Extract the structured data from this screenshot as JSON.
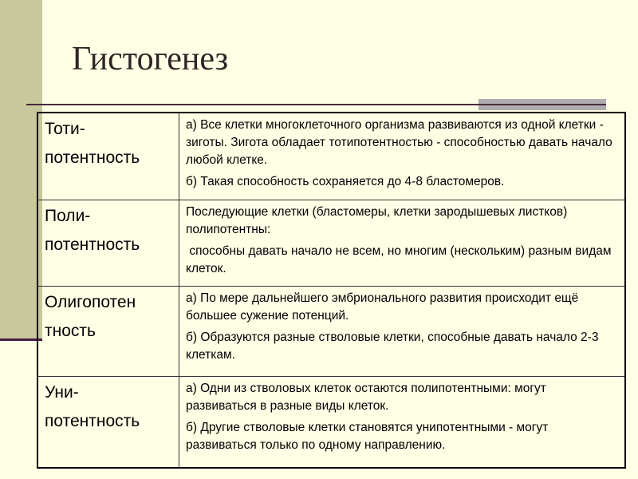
{
  "title": "Гистогенез",
  "colors": {
    "background": "#ffffe6",
    "sidebar": "#c8c89c",
    "accent_line": "#4a1c48"
  },
  "rows": [
    {
      "term": [
        "Тоти-",
        "потентность"
      ],
      "desc": [
        "а) Все клетки многоклеточного организма развиваются из одной клетки - зиготы. Зигота обладает тотипотентностью - способностью давать начало любой клетке.",
        "б) Такая способность сохраняется до 4-8 бластомеров."
      ]
    },
    {
      "term": [
        "Поли-",
        "потентность"
      ],
      "desc": [
        "Последующие клетки (бластомеры, клетки зародышевых листков) полипотентны:",
        " способны давать начало не всем, но многим (нескольким) разным видам клеток."
      ]
    },
    {
      "term": [
        "Олигопотен",
        "тность"
      ],
      "desc": [
        "а) По мере дальнейшего эмбрионального развития происходит ещё большее сужение потенций.",
        "б) Образуются разные стволовые клетки, способные давать начало 2-3 клеткам."
      ]
    },
    {
      "term": [
        "Уни-",
        "потентность"
      ],
      "desc": [
        "а) Одни из стволовых клеток остаются полипотентными: могут развиваться в разные виды клеток.",
        "б) Другие стволовые клетки становятся унипотентными - могут развиваться только по одному направлению."
      ]
    }
  ]
}
